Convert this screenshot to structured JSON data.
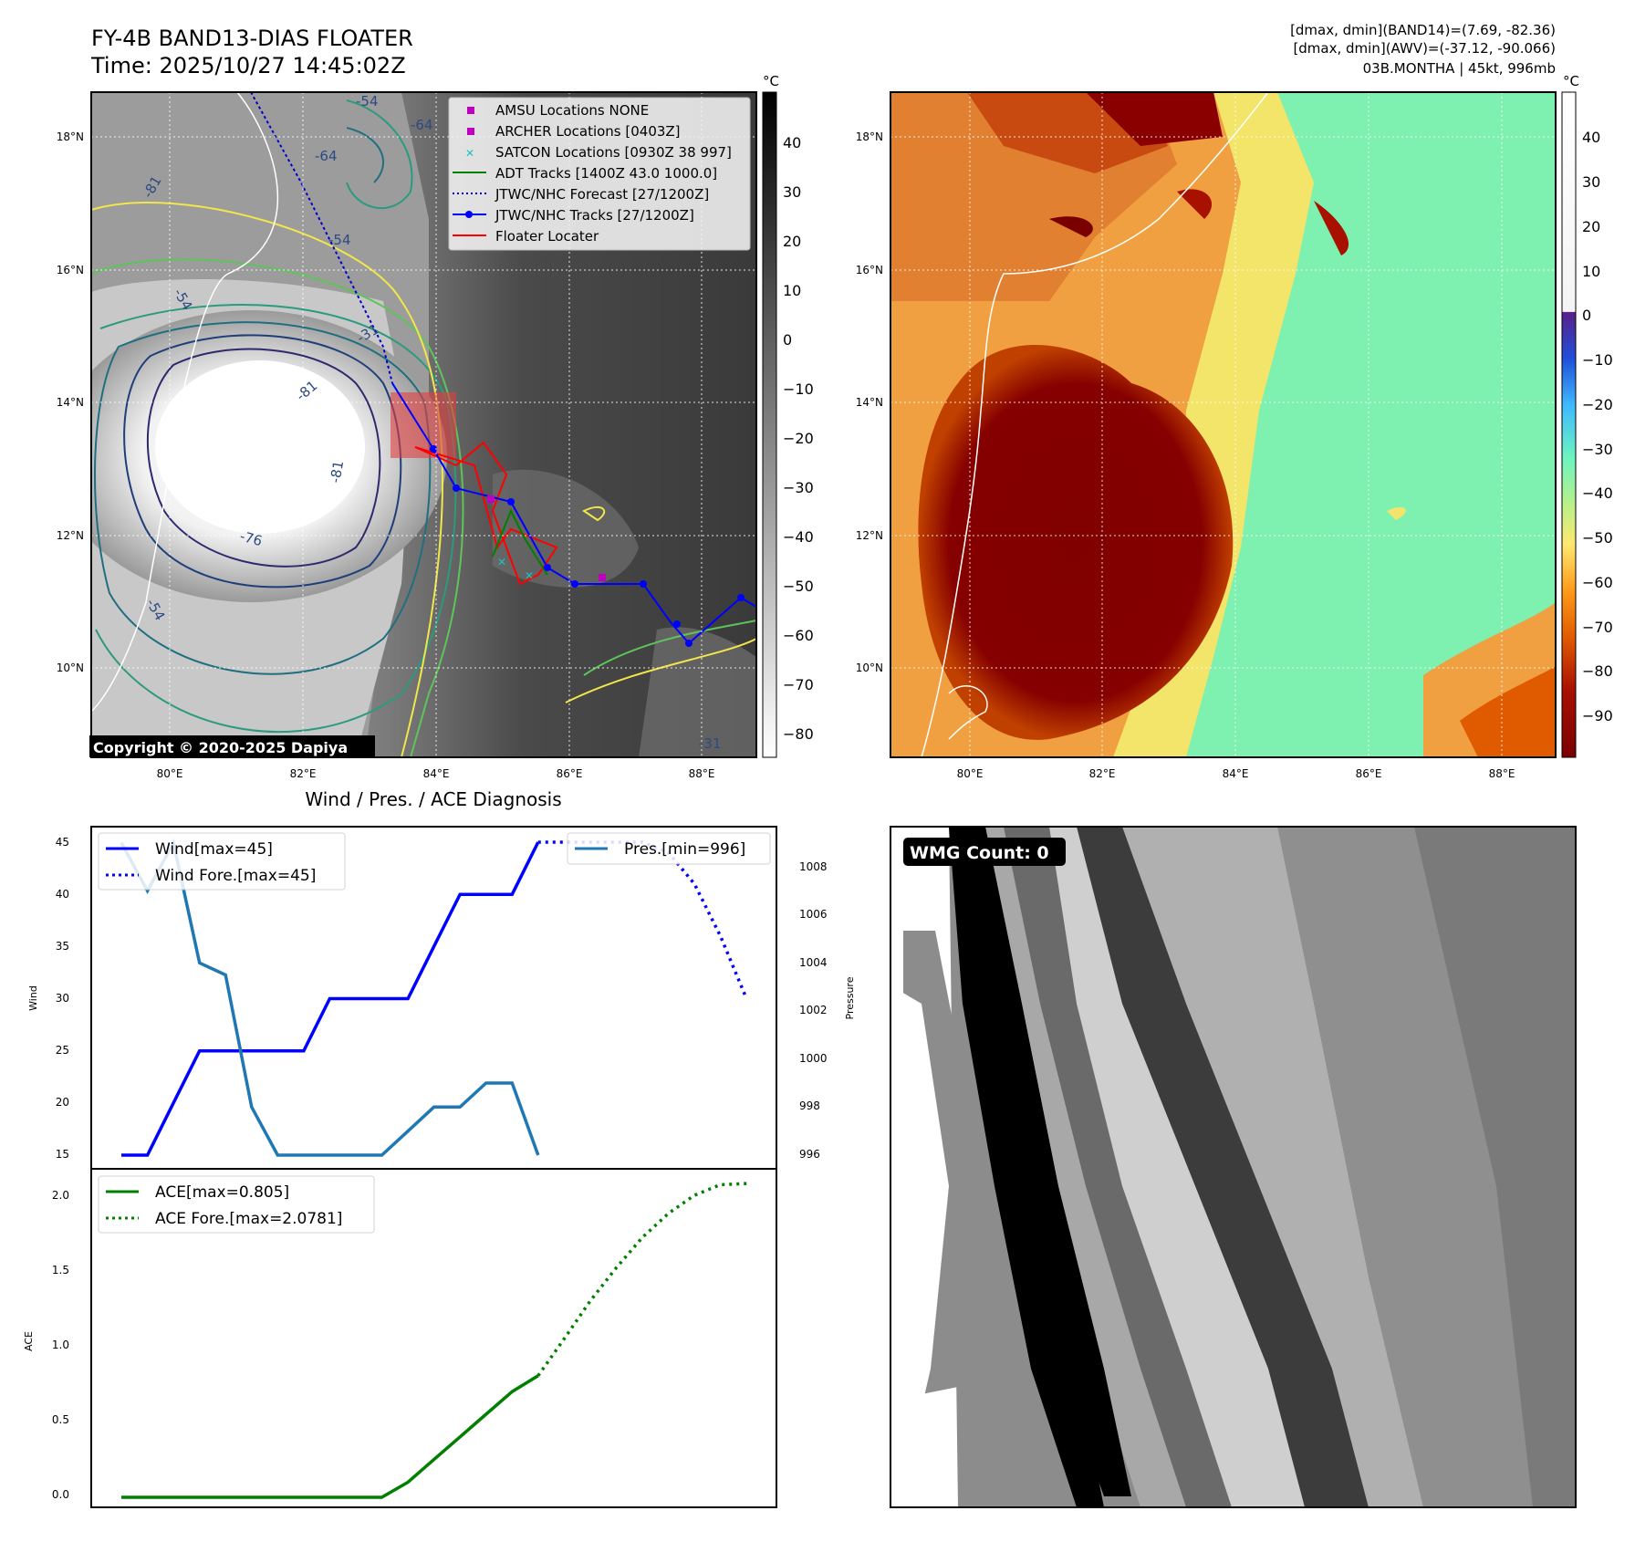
{
  "header": {
    "title_line1": "FY-4B BAND13-DIAS FLOATER",
    "title_line2": "Time: 2025/10/27 14:45:02Z",
    "info_line1": "[dmax, dmin](BAND14)=(7.69, -82.36)",
    "info_line2": "[dmax, dmin](AWV)=(-37.12, -90.066)",
    "info_line3": "03B.MONTHA | 45kt, 996mb"
  },
  "map_ir": {
    "xticks": [
      "80°E",
      "82°E",
      "84°E",
      "86°E",
      "88°E"
    ],
    "yticks": [
      "18°N",
      "16°N",
      "14°N",
      "12°N",
      "10°N"
    ],
    "cbar_unit": "°C",
    "cbar_ticks": [
      "40",
      "30",
      "20",
      "10",
      "0",
      "−10",
      "−20",
      "−30",
      "−40",
      "−50",
      "−60",
      "−70",
      "−80"
    ],
    "copyright": "Copyright © 2020-2025 Dapiya",
    "contour_labels": [
      "-54",
      "-64",
      "-64",
      "-54",
      "-54",
      "-31",
      "-31",
      "-81",
      "-76",
      "-54",
      "-81",
      "-81"
    ],
    "legend": [
      {
        "label": "AMSU Locations NONE",
        "kind": "square",
        "color": "#c000c0"
      },
      {
        "label": "ARCHER Locations [0403Z]",
        "kind": "square",
        "color": "#c000c0"
      },
      {
        "label": "SATCON Locations [0930Z 38 997]",
        "kind": "x",
        "color": "#20c0c0"
      },
      {
        "label": "ADT Tracks [1400Z 43.0 1000.0]",
        "kind": "line",
        "color": "#008000"
      },
      {
        "label": "JTWC/NHC Forecast [27/1200Z]",
        "kind": "dotted",
        "color": "#0000cc"
      },
      {
        "label": "JTWC/NHC Tracks [27/1200Z]",
        "kind": "dotline",
        "color": "#0000ff"
      },
      {
        "label": "Floater Locater",
        "kind": "line",
        "color": "#ff0000"
      }
    ]
  },
  "map_awv": {
    "xticks": [
      "80°E",
      "82°E",
      "84°E",
      "86°E",
      "88°E"
    ],
    "yticks": [
      "18°N",
      "16°N",
      "14°N",
      "12°N",
      "10°N"
    ],
    "cbar_unit": "°C",
    "cbar_ticks": [
      "40",
      "30",
      "20",
      "10",
      "0",
      "−10",
      "−20",
      "−30",
      "−40",
      "−50",
      "−60",
      "−70",
      "−80",
      "−90"
    ]
  },
  "wind_panel": {
    "title": "Wind / Pres. / ACE Diagnosis",
    "ylabel": "Wind",
    "y2label": "Pressure",
    "yticks": [
      "45",
      "40",
      "35",
      "30",
      "25",
      "20",
      "15"
    ],
    "y2ticks": [
      "1008",
      "1006",
      "1004",
      "1002",
      "1000",
      "998",
      "996"
    ],
    "legend_wind": "Wind[max=45]",
    "legend_wind_fore": "Wind Fore.[max=45]",
    "legend_pres": "Pres.[min=996]"
  },
  "ace_panel": {
    "ylabel": "ACE",
    "yticks": [
      "2.0",
      "1.5",
      "1.0",
      "0.5",
      "0.0"
    ],
    "legend_ace": "ACE[max=0.805]",
    "legend_ace_fore": "ACE Fore.[max=2.0781]"
  },
  "wmg_panel": {
    "badge": "WMG Count: 0"
  },
  "chart_data": [
    {
      "type": "line",
      "title": "Wind / Pres. / ACE Diagnosis",
      "ylabel": "Wind",
      "y2label": "Pressure",
      "x": [
        0,
        1,
        2,
        3,
        4,
        5,
        6,
        7,
        8,
        9,
        10,
        11,
        12,
        13,
        14,
        15,
        16,
        17,
        18,
        19,
        20,
        21,
        22,
        23,
        24
      ],
      "ylim": [
        14,
        46
      ],
      "y2lim": [
        995.4,
        1009.3
      ],
      "series": [
        {
          "name": "Wind[max=45]",
          "axis": "left",
          "x": [
            0,
            1,
            2,
            3,
            4,
            5,
            6,
            7,
            8,
            9,
            10,
            11,
            12,
            13,
            14,
            15,
            16
          ],
          "values": [
            15,
            15,
            20,
            25,
            25,
            25,
            25,
            25,
            30,
            30,
            30,
            30,
            35,
            40,
            40,
            40,
            45
          ],
          "color": "#0000ff",
          "style": "solid"
        },
        {
          "name": "Wind Fore.[max=45]",
          "axis": "left",
          "x": [
            16,
            17,
            18,
            19,
            20,
            21,
            22,
            23,
            24
          ],
          "values": [
            45,
            45,
            45,
            45,
            45,
            44,
            41,
            36,
            30
          ],
          "color": "#0000ff",
          "style": "dotted"
        },
        {
          "name": "Pres.[min=996]",
          "axis": "right",
          "x": [
            0,
            1,
            2,
            3,
            4,
            5,
            6,
            7,
            8,
            9,
            10,
            11,
            12,
            13,
            14,
            15,
            16
          ],
          "values": [
            1009,
            1007,
            1009,
            1004,
            1003.5,
            998,
            996,
            996,
            996,
            996,
            996,
            997,
            998,
            998,
            999,
            999,
            996
          ],
          "color": "#1f77b4",
          "style": "solid"
        }
      ]
    },
    {
      "type": "line",
      "ylabel": "ACE",
      "x": [
        0,
        1,
        2,
        3,
        4,
        5,
        6,
        7,
        8,
        9,
        10,
        11,
        12,
        13,
        14,
        15,
        16,
        17,
        18,
        19,
        20,
        21,
        22,
        23,
        24
      ],
      "ylim": [
        -0.06,
        2.2
      ],
      "series": [
        {
          "name": "ACE[max=0.805]",
          "x": [
            0,
            1,
            2,
            3,
            4,
            5,
            6,
            7,
            8,
            9,
            10,
            11,
            12,
            13,
            14,
            15,
            16
          ],
          "values": [
            0,
            0,
            0,
            0,
            0,
            0,
            0,
            0,
            0,
            0,
            0,
            0.1,
            0.25,
            0.4,
            0.55,
            0.7,
            0.805
          ],
          "color": "#008000",
          "style": "solid"
        },
        {
          "name": "ACE Fore.[max=2.0781]",
          "x": [
            16,
            17,
            18,
            19,
            20,
            21,
            22,
            23,
            24
          ],
          "values": [
            0.805,
            1.05,
            1.3,
            1.52,
            1.72,
            1.88,
            2.0,
            2.07,
            2.0781
          ],
          "color": "#008000",
          "style": "dotted"
        }
      ]
    }
  ]
}
